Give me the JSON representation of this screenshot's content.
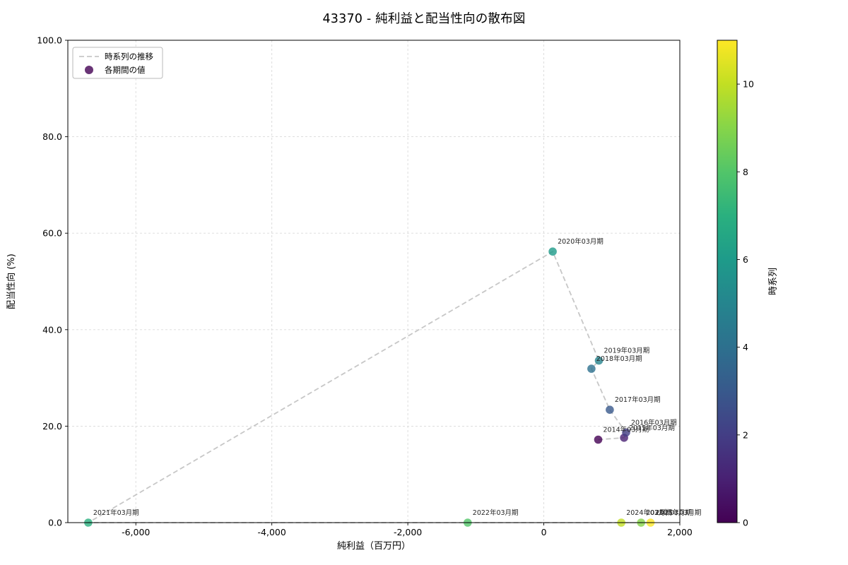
{
  "chart_data": {
    "type": "scatter",
    "title": "43370 - 純利益と配当性向の散布図",
    "xlabel": "純利益（百万円）",
    "ylabel": "配当性向 (%)",
    "xlim": [
      -7000,
      2000
    ],
    "ylim": [
      0,
      100
    ],
    "xticks": [
      -6000,
      -4000,
      -2000,
      0,
      2000
    ],
    "xtick_labels": [
      "-6,000",
      "-4,000",
      "-2,000",
      "0",
      "2,000"
    ],
    "yticks": [
      0,
      20,
      40,
      60,
      80,
      100
    ],
    "ytick_labels": [
      "0.0",
      "20.0",
      "40.0",
      "60.0",
      "80.0",
      "100.0"
    ],
    "grid": true,
    "legend": {
      "position": "upper left",
      "line_label": "時系列の推移",
      "marker_label": "各期間の値"
    },
    "colorbar": {
      "label": "時系列",
      "min": 0,
      "max": 11,
      "ticks": [
        0,
        2,
        4,
        6,
        8,
        10
      ],
      "colors": [
        "#440154",
        "#482173",
        "#433e85",
        "#38598c",
        "#2d708e",
        "#25858e",
        "#1e9b8a",
        "#2ab07f",
        "#52c569",
        "#86d549",
        "#c2df23",
        "#fde725"
      ]
    },
    "line": {
      "style": "dashed",
      "color": "#c7c7c7",
      "order": "chronological"
    },
    "points": [
      {
        "label": "2014年03月期",
        "x": 800,
        "y": 17.2,
        "t": 0
      },
      {
        "label": "2015年03月期",
        "x": 1180,
        "y": 17.6,
        "t": 1
      },
      {
        "label": "2016年03月期",
        "x": 1210,
        "y": 18.7,
        "t": 2
      },
      {
        "label": "2017年03月期",
        "x": 970,
        "y": 23.4,
        "t": 3
      },
      {
        "label": "2018年03月期",
        "x": 700,
        "y": 31.9,
        "t": 4
      },
      {
        "label": "2019年03月期",
        "x": 810,
        "y": 33.6,
        "t": 5
      },
      {
        "label": "2020年03月期",
        "x": 130,
        "y": 56.2,
        "t": 6
      },
      {
        "label": "2021年03月期",
        "x": -6700,
        "y": 0.0,
        "t": 7
      },
      {
        "label": "2022年03月期",
        "x": -1120,
        "y": 0.0,
        "t": 8
      },
      {
        "label": "2023年03月期",
        "x": 1430,
        "y": 0.0,
        "t": 9
      },
      {
        "label": "2024年03月期",
        "x": 1140,
        "y": 0.0,
        "t": 10
      },
      {
        "label": "2025年03月期",
        "x": 1570,
        "y": 0.0,
        "t": 11
      }
    ]
  }
}
